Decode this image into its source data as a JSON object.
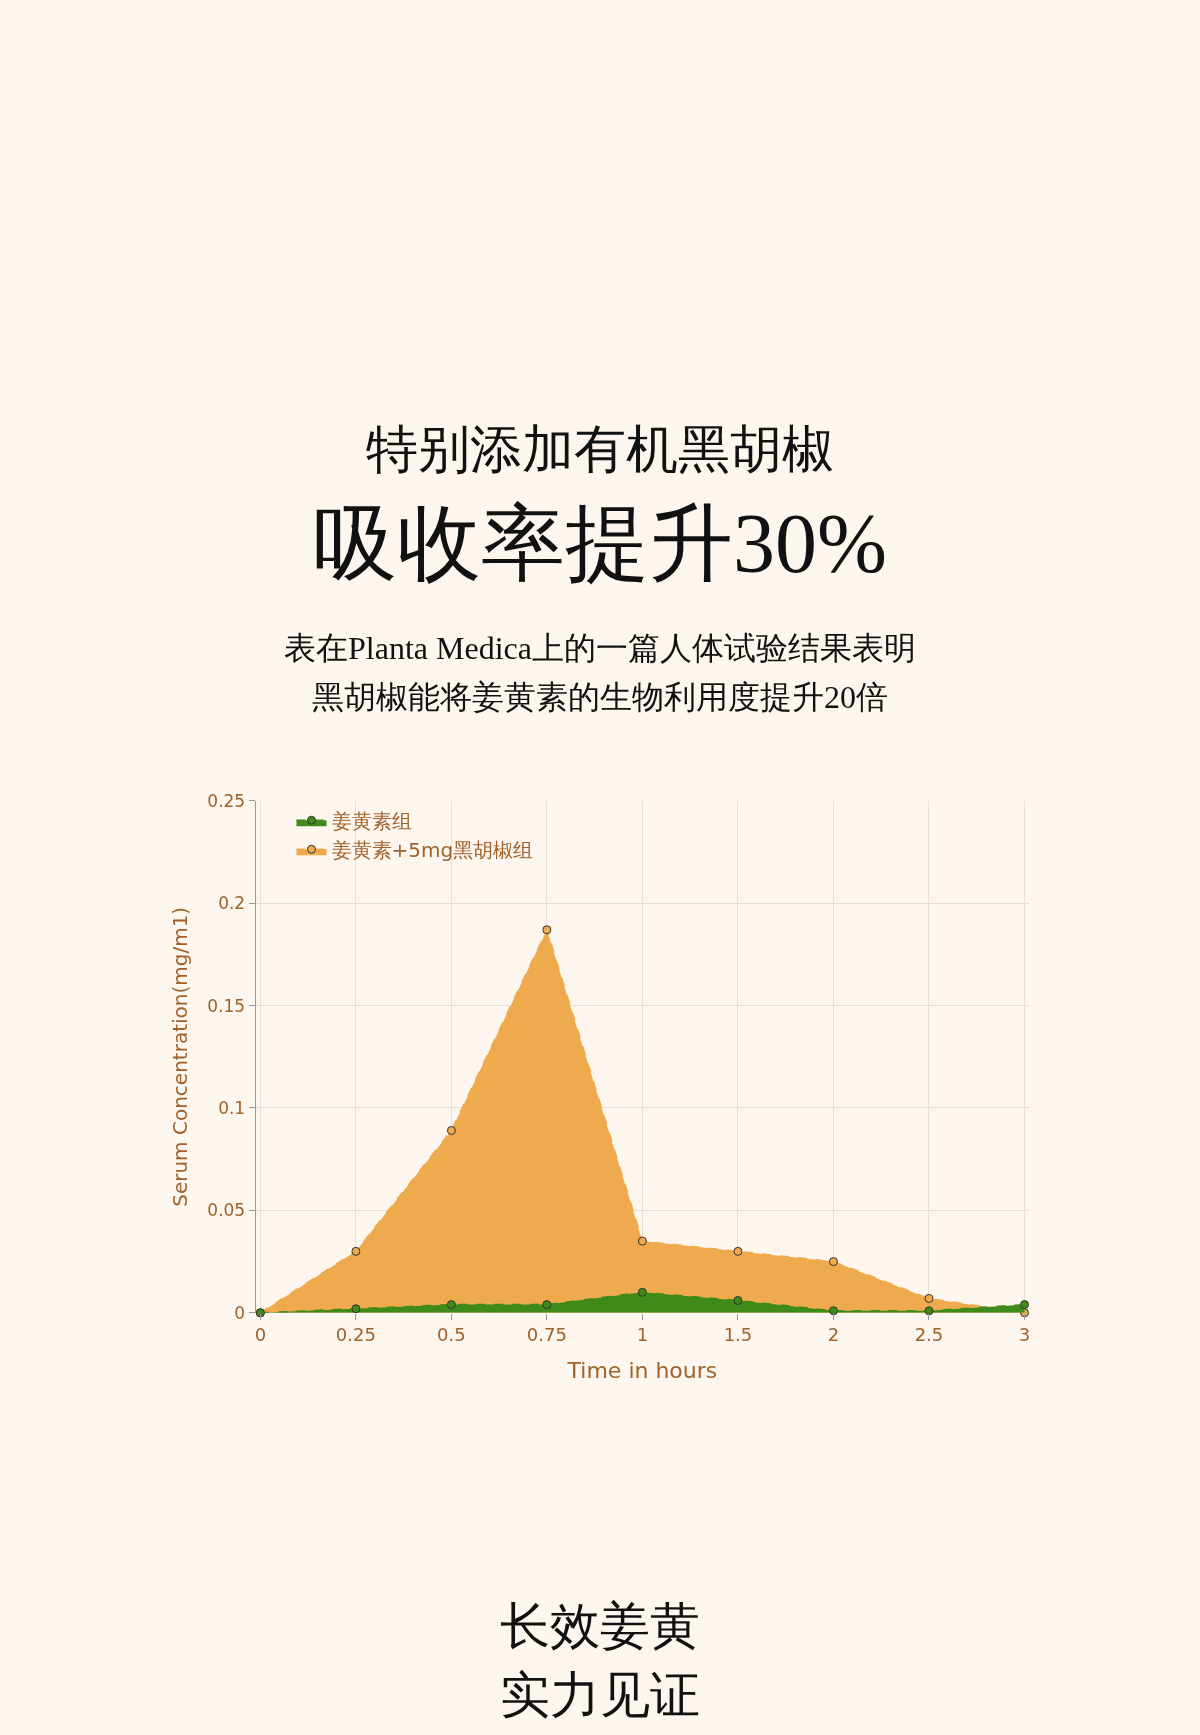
{
  "chart_data": {
    "type": "area",
    "title": "特别添加有机黑胡椒",
    "subtitle": "吸收率提升30%",
    "xlabel": "Time in hours",
    "ylabel": "Serum Concentration(mg/m1)",
    "categories": [
      "0",
      "0.25",
      "0.5",
      "0.75",
      "1",
      "1.5",
      "2",
      "2.5",
      "3"
    ],
    "series": [
      {
        "name": "姜黄素+5mg黑胡椒组",
        "color": "#eeaa4c",
        "values": [
          0,
          0.03,
          0.089,
          0.187,
          0.035,
          0.03,
          0.025,
          0.007,
          0.0
        ]
      },
      {
        "name": "姜黄素组",
        "color": "#3f8a18",
        "values": [
          0,
          0.002,
          0.004,
          0.004,
          0.01,
          0.006,
          0.001,
          0.001,
          0.004
        ]
      }
    ],
    "ylim": [
      0,
      0.25
    ],
    "yticks": [
      0,
      0.05,
      0.1,
      0.15,
      0.2,
      0.25
    ],
    "grid": true,
    "legend": "top left",
    "marker": "circle",
    "line_style": "dashed",
    "annotations": [
      "表在Planta Medica上的一篇人体试验结果表明",
      "黑胡椒能将姜黄素的生物利用度提升20倍",
      "长效姜黄",
      "实力见证"
    ]
  }
}
